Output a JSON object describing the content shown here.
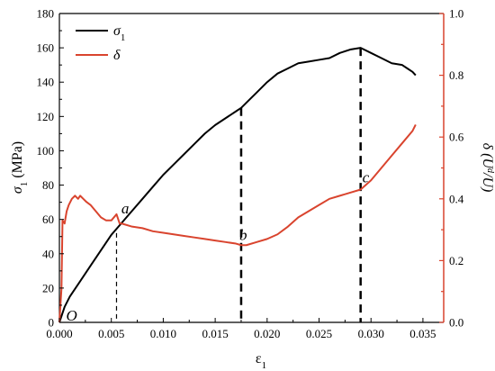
{
  "chart_data": {
    "type": "line",
    "title": "",
    "xlabel": "ε",
    "xlabel_sub": "1",
    "ylabel_left": "σ",
    "ylabel_left_sub": "1",
    "ylabel_left_unit": " (MPa)",
    "ylabel_right": "δ (U",
    "ylabel_right_sup": "d",
    "ylabel_right_tail": "/U)",
    "xlim": [
      0,
      0.037
    ],
    "ylim_left": [
      0,
      180
    ],
    "ylim_right": [
      0,
      1.0
    ],
    "x_ticks": [
      "0.000",
      "0.005",
      "0.010",
      "0.015",
      "0.020",
      "0.025",
      "0.030",
      "0.035"
    ],
    "x_tick_values": [
      0,
      0.005,
      0.01,
      0.015,
      0.02,
      0.025,
      0.03,
      0.035
    ],
    "y_left_ticks": [
      "0",
      "20",
      "40",
      "60",
      "80",
      "100",
      "120",
      "140",
      "160",
      "180"
    ],
    "y_left_tick_values": [
      0,
      20,
      40,
      60,
      80,
      100,
      120,
      140,
      160,
      180
    ],
    "y_right_ticks": [
      "0.0",
      "0.2",
      "0.4",
      "0.6",
      "0.8",
      "1.0"
    ],
    "y_right_tick_values": [
      0,
      0.2,
      0.4,
      0.6,
      0.8,
      1.0
    ],
    "grid": false,
    "legend_position": "top-left",
    "series": [
      {
        "name": "σ",
        "name_sub": "1",
        "axis": "left",
        "color": "#000000",
        "x": [
          0.0,
          0.0005,
          0.001,
          0.002,
          0.003,
          0.004,
          0.005,
          0.006,
          0.007,
          0.008,
          0.009,
          0.01,
          0.011,
          0.012,
          0.013,
          0.014,
          0.015,
          0.016,
          0.017,
          0.0175,
          0.018,
          0.019,
          0.02,
          0.021,
          0.022,
          0.023,
          0.024,
          0.025,
          0.026,
          0.027,
          0.028,
          0.029,
          0.03,
          0.031,
          0.032,
          0.033,
          0.0335,
          0.034,
          0.0343
        ],
        "y": [
          0,
          9,
          15,
          24,
          33,
          42,
          51,
          58,
          65,
          72,
          79,
          86,
          92,
          98,
          104,
          110,
          115,
          119,
          123,
          125,
          128,
          134,
          140,
          145,
          148,
          151,
          152,
          153,
          154,
          157,
          159,
          160,
          157,
          154,
          151,
          150,
          148,
          146,
          144
        ]
      },
      {
        "name": "δ",
        "axis": "right",
        "color": "#d9442e",
        "x": [
          0.0,
          0.0002,
          0.0003,
          0.0005,
          0.0007,
          0.0009,
          0.0012,
          0.0015,
          0.0018,
          0.002,
          0.0023,
          0.0026,
          0.003,
          0.0035,
          0.004,
          0.0045,
          0.005,
          0.0055,
          0.0058,
          0.006,
          0.007,
          0.008,
          0.009,
          0.01,
          0.011,
          0.012,
          0.013,
          0.014,
          0.015,
          0.016,
          0.017,
          0.0175,
          0.018,
          0.019,
          0.02,
          0.021,
          0.022,
          0.023,
          0.024,
          0.025,
          0.026,
          0.027,
          0.028,
          0.029,
          0.03,
          0.031,
          0.032,
          0.033,
          0.034,
          0.0343
        ],
        "y": [
          0.0,
          0.11,
          0.33,
          0.32,
          0.36,
          0.38,
          0.4,
          0.41,
          0.4,
          0.41,
          0.4,
          0.39,
          0.38,
          0.36,
          0.34,
          0.33,
          0.33,
          0.35,
          0.32,
          0.32,
          0.31,
          0.305,
          0.295,
          0.29,
          0.285,
          0.28,
          0.275,
          0.27,
          0.265,
          0.26,
          0.255,
          0.25,
          0.25,
          0.26,
          0.27,
          0.285,
          0.31,
          0.34,
          0.36,
          0.38,
          0.4,
          0.41,
          0.42,
          0.43,
          0.46,
          0.5,
          0.54,
          0.58,
          0.62,
          0.64
        ]
      }
    ],
    "markers": [
      {
        "label": "O",
        "x": 0.0003,
        "y": 0,
        "axis": "left"
      },
      {
        "label": "a",
        "x": 0.0058,
        "y": 0.33,
        "axis": "right"
      },
      {
        "label": "b",
        "x": 0.0175,
        "y": 0.25,
        "axis": "right"
      },
      {
        "label": "c",
        "x": 0.029,
        "y": 0.43,
        "axis": "right"
      }
    ],
    "dashed_lines": [
      {
        "x": 0.0055,
        "top_left_y": 52,
        "style": "thin"
      },
      {
        "x": 0.0175,
        "top_left_y": 125,
        "style": "bold"
      },
      {
        "x": 0.029,
        "top_left_y": 160,
        "style": "bold"
      }
    ],
    "colors": {
      "left_axis": "#000000",
      "right_axis": "#d9442e",
      "sigma_line": "#000000",
      "delta_line": "#d9442e"
    }
  }
}
